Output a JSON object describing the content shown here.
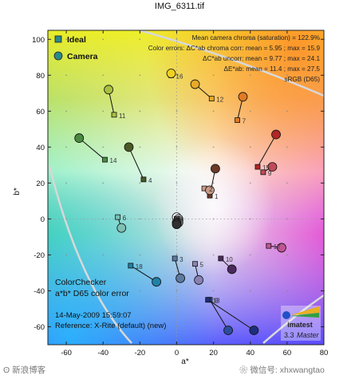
{
  "title": "IMG_6311.tif",
  "chart_data": {
    "type": "scatter",
    "title": "IMG_6311.tif",
    "xlabel": "a*",
    "ylabel": "b*",
    "xlim": [
      -70,
      80
    ],
    "ylim": [
      -70,
      105
    ],
    "x_ticks": [
      "-60",
      "-40",
      "-20",
      "0",
      "20",
      "40",
      "60",
      "80"
    ],
    "y_ticks": [
      "100",
      "80",
      "60",
      "40",
      "20",
      "0",
      "-20",
      "-40",
      "-60"
    ],
    "grid": true,
    "legend_position": "top-left",
    "legend": [
      {
        "label": "Ideal",
        "marker": "square",
        "color": "#2a8a8a"
      },
      {
        "label": "Camera",
        "marker": "circle",
        "color": "#2a8a8a"
      }
    ],
    "stats_lines": [
      "Mean camera chroma (saturation) = 122.9%",
      "Color errors:  ΔC*ab chroma corr:  mean = 5.95 ;  max = 15.9",
      "ΔC*ab uncorr:  mean = 9.77 ;  max = 24.1",
      "ΔE*ab:  mean = 11.4 ;  max = 27.5",
      "sRGB (D65)"
    ],
    "patches": [
      {
        "id": "1",
        "ideal": [
          18,
          13
        ],
        "camera": [
          21,
          28
        ],
        "color": "#6b3a28"
      },
      {
        "id": "2",
        "ideal": [
          15,
          17
        ],
        "camera": [
          18,
          16
        ],
        "color": "#c99a86"
      },
      {
        "id": "3",
        "ideal": [
          -1,
          -22
        ],
        "camera": [
          2,
          -33
        ],
        "color": "#5c7aa0"
      },
      {
        "id": "4",
        "ideal": [
          -18,
          22
        ],
        "camera": [
          -26,
          40
        ],
        "color": "#4a5a24"
      },
      {
        "id": "5",
        "ideal": [
          10,
          -25
        ],
        "camera": [
          12,
          -34
        ],
        "color": "#8a82b4"
      },
      {
        "id": "6",
        "ideal": [
          -32,
          1
        ],
        "camera": [
          -30,
          -5
        ],
        "color": "#7ec0b4"
      },
      {
        "id": "7",
        "ideal": [
          33,
          55
        ],
        "camera": [
          36,
          68
        ],
        "color": "#e07a24"
      },
      {
        "id": "8",
        "ideal": [
          18,
          -45
        ],
        "camera": [
          28,
          -62
        ],
        "color": "#2c4c9c"
      },
      {
        "id": "9",
        "ideal": [
          47,
          26
        ],
        "camera": [
          52,
          29
        ],
        "color": "#c04a58"
      },
      {
        "id": "10",
        "ideal": [
          24,
          -22
        ],
        "camera": [
          30,
          -28
        ],
        "color": "#4a2a5c"
      },
      {
        "id": "11",
        "ideal": [
          -34,
          58
        ],
        "camera": [
          -37,
          72
        ],
        "color": "#a8c040"
      },
      {
        "id": "12",
        "ideal": [
          19,
          67
        ],
        "camera": [
          10,
          75
        ],
        "color": "#e8a828"
      },
      {
        "id": "13",
        "ideal": [
          17,
          -45
        ],
        "camera": [
          42,
          -62
        ],
        "color": "#1e2e7c"
      },
      {
        "id": "14",
        "ideal": [
          -39,
          33
        ],
        "camera": [
          -53,
          45
        ],
        "color": "#4a8a40"
      },
      {
        "id": "15",
        "ideal": [
          44,
          29
        ],
        "camera": [
          54,
          47
        ],
        "color": "#b02828"
      },
      {
        "id": "16",
        "ideal": [
          -3,
          80
        ],
        "camera": [
          -3,
          81
        ],
        "color": "#f0d020"
      },
      {
        "id": "17",
        "ideal": [
          50,
          -15
        ],
        "camera": [
          57,
          -16
        ],
        "color": "#c05494"
      },
      {
        "id": "18",
        "ideal": [
          -25,
          -26
        ],
        "camera": [
          -11,
          -35
        ],
        "color": "#1e82a8"
      },
      {
        "id": "19",
        "ideal": [
          0,
          1
        ],
        "camera": [
          0,
          1
        ],
        "color": "#f2f2f2"
      },
      {
        "id": "20",
        "ideal": [
          0,
          0
        ],
        "camera": [
          1,
          0
        ],
        "color": "#c8c8c8"
      },
      {
        "id": "21",
        "ideal": [
          0,
          0
        ],
        "camera": [
          1,
          -1
        ],
        "color": "#a0a0a0"
      },
      {
        "id": "22",
        "ideal": [
          0,
          -1
        ],
        "camera": [
          1,
          -2
        ],
        "color": "#787878"
      },
      {
        "id": "23",
        "ideal": [
          0,
          0
        ],
        "camera": [
          0,
          -2
        ],
        "color": "#505050"
      },
      {
        "id": "24",
        "ideal": [
          0,
          -1
        ],
        "camera": [
          0,
          -3
        ],
        "color": "#303030"
      }
    ],
    "info_lines": [
      "ColorChecker",
      "a*b* D65 color error",
      "14-May-2009 15:59:07",
      "Reference: X-Rite (default) (new)"
    ],
    "brand": {
      "version": "3.3",
      "edition": "Master",
      "name": "imatest"
    }
  },
  "footer": {
    "left": "新浪博客",
    "right": "微信号: xhxwangtao"
  }
}
